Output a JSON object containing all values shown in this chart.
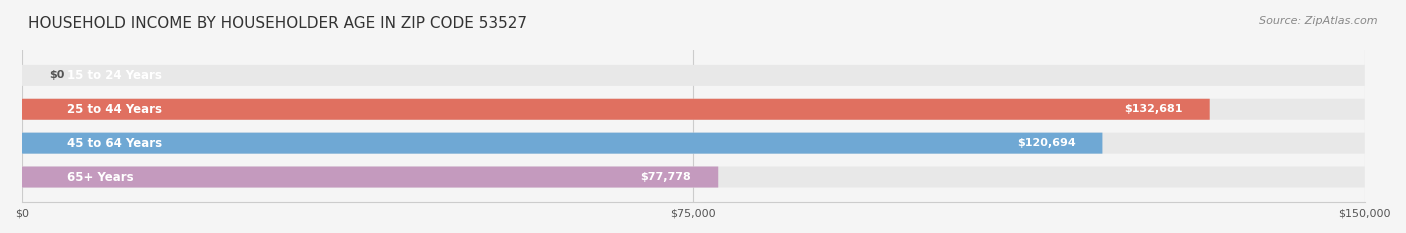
{
  "title": "HOUSEHOLD INCOME BY HOUSEHOLDER AGE IN ZIP CODE 53527",
  "source": "Source: ZipAtlas.com",
  "categories": [
    "15 to 24 Years",
    "25 to 44 Years",
    "45 to 64 Years",
    "65+ Years"
  ],
  "values": [
    0,
    132681,
    120694,
    77778
  ],
  "value_labels": [
    "$0",
    "$132,681",
    "$120,694",
    "$77,778"
  ],
  "bar_colors": [
    "#e8c98a",
    "#e07060",
    "#6fa8d4",
    "#c49abe"
  ],
  "bg_color": "#f0f0f0",
  "bar_bg_color": "#e8e8e8",
  "xlim": [
    0,
    150000
  ],
  "xticks": [
    0,
    75000,
    150000
  ],
  "xtick_labels": [
    "$0",
    "$75,000",
    "$150,000"
  ],
  "title_fontsize": 11,
  "source_fontsize": 8,
  "label_fontsize": 8.5,
  "value_fontsize": 8,
  "bar_height": 0.62,
  "background_color": "#f5f5f5"
}
